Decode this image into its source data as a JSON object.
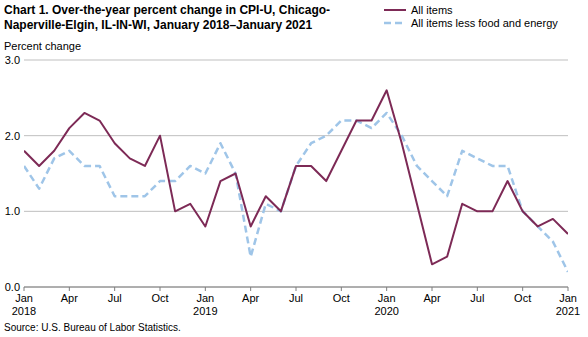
{
  "chart_data": {
    "type": "line",
    "title": "Chart 1. Over-the-year percent change in CPI-U, Chicago-Naperville-Elgin, IL-IN-WI, January 2018–January 2021",
    "y_label": "Percent change",
    "source": "Source: U.S. Bureau of Labor Statistics.",
    "categories": [
      "Jan 2018",
      null,
      null,
      "Apr",
      null,
      null,
      "Jul",
      null,
      null,
      "Oct",
      null,
      null,
      "Jan 2019",
      null,
      null,
      "Apr",
      null,
      null,
      "Jul",
      null,
      null,
      "Oct",
      null,
      null,
      "Jan 2020",
      null,
      null,
      "Apr",
      null,
      null,
      "Jul",
      null,
      null,
      "Oct",
      null,
      null,
      "Jan 2021"
    ],
    "series": [
      {
        "name": "All items",
        "color": "#7d2a56",
        "line_style": "solid",
        "values": [
          1.8,
          1.6,
          1.8,
          2.1,
          2.3,
          2.2,
          1.9,
          1.7,
          1.6,
          2.0,
          1.0,
          1.1,
          0.8,
          1.4,
          1.5,
          0.8,
          1.2,
          1.0,
          1.6,
          1.6,
          1.4,
          1.8,
          2.2,
          2.2,
          2.6,
          1.9,
          1.1,
          0.3,
          0.4,
          1.1,
          1.0,
          1.0,
          1.4,
          1.0,
          0.8,
          0.9,
          0.7
        ]
      },
      {
        "name": "All items less food and energy",
        "color": "#9fc5e8",
        "line_style": "dashed",
        "values": [
          1.6,
          1.3,
          1.7,
          1.8,
          1.6,
          1.6,
          1.2,
          1.2,
          1.2,
          1.4,
          1.4,
          1.6,
          1.5,
          1.9,
          1.5,
          0.4,
          1.1,
          1.0,
          1.6,
          1.9,
          2.0,
          2.2,
          2.2,
          2.1,
          2.3,
          2.0,
          1.6,
          1.4,
          1.2,
          1.8,
          1.7,
          1.6,
          1.6,
          1.0,
          0.8,
          0.6,
          0.2
        ]
      }
    ],
    "ylim": [
      0,
      3
    ],
    "yticks": [
      {
        "value": 0,
        "label": "0.0"
      },
      {
        "value": 1,
        "label": "1.0"
      },
      {
        "value": 2,
        "label": "2.0"
      },
      {
        "value": 3,
        "label": "3.0"
      }
    ],
    "grid": true,
    "legend": "top-right"
  }
}
